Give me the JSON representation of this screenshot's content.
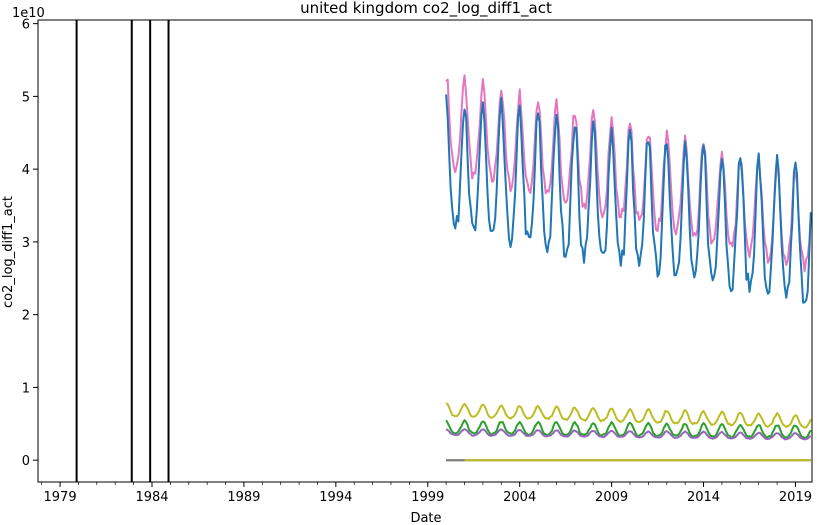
{
  "chart_data": {
    "type": "line",
    "title": "united kingdom co2_log_diff1_act",
    "xlabel": "Date",
    "ylabel": "co2_log_diff1_act",
    "y_offset_label": "1e10",
    "xlim": [
      1977.8,
      2019.9
    ],
    "ylim": [
      -0.3,
      6.05
    ],
    "y_unit_multiplier": 10000000000.0,
    "x_ticks": [
      1979,
      1984,
      1989,
      1994,
      1999,
      2004,
      2009,
      2014,
      2019
    ],
    "x_tick_labels": [
      "1979",
      "1984",
      "1989",
      "1994",
      "1999",
      "2004",
      "2009",
      "2014",
      "2019"
    ],
    "y_ticks": [
      0,
      1,
      2,
      3,
      4,
      5,
      6
    ],
    "y_tick_labels": [
      "0",
      "1",
      "2",
      "3",
      "4",
      "5",
      "6"
    ],
    "grid": false,
    "vertical_lines": [
      {
        "x": 1979.9,
        "color": "#000000"
      },
      {
        "x": 1982.9,
        "color": "#000000"
      },
      {
        "x": 1983.9,
        "color": "#000000"
      },
      {
        "x": 1984.9,
        "color": "#000000"
      }
    ],
    "series": [
      {
        "color": "#e377c2",
        "x_start": 2000.0,
        "x_end": 2019.9,
        "base": 4.55,
        "amplitude": 0.75,
        "trend": -0.07,
        "shape": "seasonal"
      },
      {
        "color": "#1f77b4",
        "x_start": 2000.0,
        "x_end": 2019.9,
        "base": 3.95,
        "amplitude": 1.05,
        "trend": -0.05,
        "shape": "seasonal"
      },
      {
        "color": "#bcbd22",
        "x_start": 2000.0,
        "x_end": 2019.9,
        "base": 0.68,
        "amplitude": 0.1,
        "trend": -0.008,
        "shape": "seasonal"
      },
      {
        "color": "#2ca02c",
        "x_start": 2000.0,
        "x_end": 2019.9,
        "base": 0.44,
        "amplitude": 0.1,
        "trend": -0.003,
        "shape": "seasonal"
      },
      {
        "color": "#9467bd",
        "x_start": 2000.0,
        "x_end": 2019.9,
        "base": 0.38,
        "amplitude": 0.05,
        "trend": -0.003,
        "shape": "seasonal"
      },
      {
        "color": "#8c564b",
        "x_start": 2000.0,
        "x_end": 2019.9,
        "base": 0.0,
        "amplitude": 0.0,
        "trend": 0.0,
        "shape": "flat"
      },
      {
        "color": "#7f7f7f",
        "x_start": 2000.0,
        "x_end": 2001.0,
        "base": 0.0,
        "amplitude": 0.0,
        "trend": 0.0,
        "shape": "flat"
      },
      {
        "color": "#bcbd22",
        "x_start": 2001.0,
        "x_end": 2019.9,
        "base": 0.0,
        "amplitude": 0.0,
        "trend": 0.0,
        "shape": "flat"
      }
    ]
  }
}
